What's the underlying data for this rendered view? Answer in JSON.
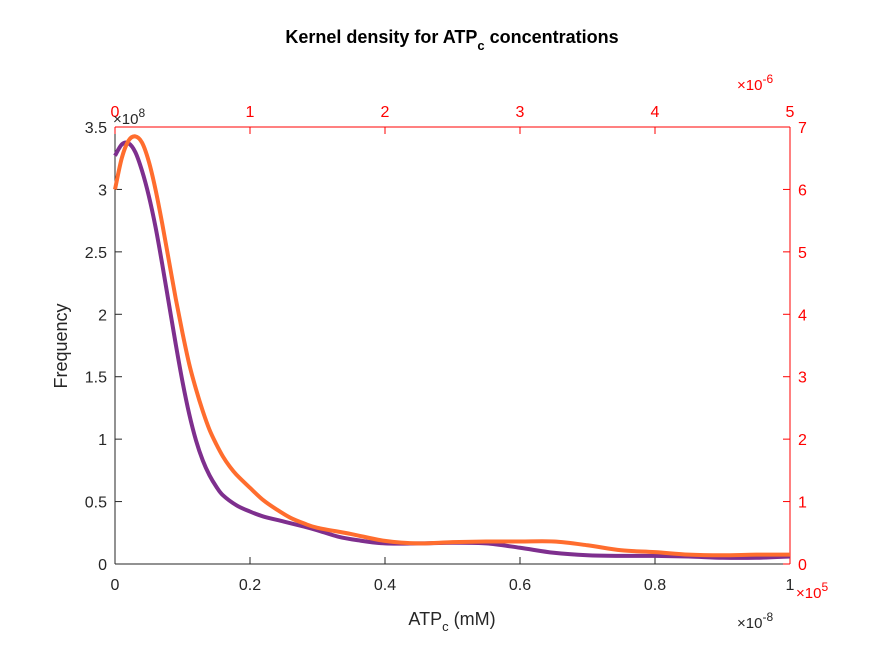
{
  "chart_data": {
    "type": "line",
    "title": {
      "main": "Kernel density for ATP",
      "subscript": "c",
      "suffix": " concentrations"
    },
    "xlabel": {
      "main": "ATP",
      "subscript": "c",
      "suffix": " (mM)"
    },
    "ylabel": "Frequency",
    "bottom_axis": {
      "range": [
        0,
        1
      ],
      "ticks": [
        0,
        0.2,
        0.4,
        0.6,
        0.8,
        1
      ],
      "tick_labels": [
        "0",
        "0.2",
        "0.4",
        "0.6",
        "0.8",
        "1"
      ],
      "exponent_label": "×10",
      "exponent": "-8",
      "color": "#262626"
    },
    "left_axis": {
      "range": [
        0,
        3.5
      ],
      "ticks": [
        0,
        0.5,
        1,
        1.5,
        2,
        2.5,
        3,
        3.5
      ],
      "tick_labels": [
        "0",
        "0.5",
        "1",
        "1.5",
        "2",
        "2.5",
        "3",
        "3.5"
      ],
      "exponent_label": "×10",
      "exponent": "8",
      "color": "#262626"
    },
    "top_axis": {
      "range": [
        0,
        5
      ],
      "ticks": [
        0,
        1,
        2,
        3,
        4,
        5
      ],
      "tick_labels": [
        "0",
        "1",
        "2",
        "3",
        "4",
        "5"
      ],
      "exponent_label": "×10",
      "exponent": "-6",
      "color": "#ff0000"
    },
    "right_axis": {
      "range": [
        0,
        7
      ],
      "ticks": [
        0,
        1,
        2,
        3,
        4,
        5,
        6,
        7
      ],
      "tick_labels": [
        "0",
        "1",
        "2",
        "3",
        "4",
        "5",
        "6",
        "7"
      ],
      "exponent_label": "×10",
      "exponent": "5",
      "color": "#ff0000"
    },
    "grid": false,
    "legend": "none",
    "series": [
      {
        "color": "#7e2f8e",
        "axes": "bottom-left",
        "x": [
          0,
          0.01,
          0.02,
          0.03,
          0.04,
          0.05,
          0.06,
          0.07,
          0.08,
          0.09,
          0.1,
          0.11,
          0.12,
          0.13,
          0.14,
          0.15,
          0.16,
          0.18,
          0.2,
          0.22,
          0.25,
          0.28,
          0.3,
          0.33,
          0.36,
          0.4,
          0.45,
          0.5,
          0.55,
          0.6,
          0.65,
          0.7,
          0.75,
          0.8,
          0.85,
          0.9,
          0.95,
          1.0
        ],
        "y": [
          3.27,
          3.36,
          3.37,
          3.3,
          3.15,
          2.95,
          2.7,
          2.4,
          2.08,
          1.76,
          1.46,
          1.2,
          0.99,
          0.83,
          0.71,
          0.62,
          0.55,
          0.47,
          0.42,
          0.38,
          0.34,
          0.3,
          0.27,
          0.22,
          0.19,
          0.165,
          0.165,
          0.17,
          0.165,
          0.13,
          0.09,
          0.07,
          0.065,
          0.065,
          0.06,
          0.05,
          0.05,
          0.06
        ]
      },
      {
        "color": "#ff6d2e",
        "axes": "top-right",
        "x": [
          0,
          0.05,
          0.1,
          0.15,
          0.2,
          0.25,
          0.3,
          0.35,
          0.4,
          0.45,
          0.5,
          0.55,
          0.6,
          0.65,
          0.7,
          0.75,
          0.8,
          0.85,
          0.9,
          1.0,
          1.1,
          1.2,
          1.3,
          1.4,
          1.5,
          1.75,
          2.0,
          2.25,
          2.5,
          2.75,
          3.0,
          3.25,
          3.5,
          3.75,
          4.0,
          4.25,
          4.5,
          4.75,
          5.0
        ],
        "y": [
          6.0,
          6.5,
          6.78,
          6.85,
          6.75,
          6.45,
          6.0,
          5.45,
          4.85,
          4.25,
          3.7,
          3.2,
          2.8,
          2.45,
          2.15,
          1.92,
          1.72,
          1.56,
          1.43,
          1.22,
          1.02,
          0.87,
          0.74,
          0.65,
          0.58,
          0.48,
          0.37,
          0.33,
          0.35,
          0.36,
          0.36,
          0.36,
          0.3,
          0.22,
          0.19,
          0.15,
          0.14,
          0.15,
          0.15
        ]
      }
    ]
  }
}
